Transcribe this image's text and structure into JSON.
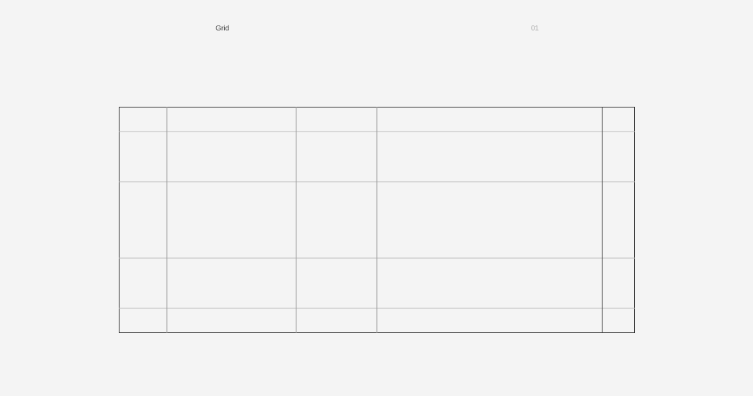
{
  "header": {
    "title": "Grid",
    "page_number": "01"
  },
  "grid": {
    "columns": 5,
    "rows": 5,
    "colors": {
      "frame": "#2c2c2c",
      "row_line": "#bdbdbd",
      "column_line": "#9e9e9e",
      "last_column_line": "#3a3a3a",
      "background": "#f4f4f4"
    }
  }
}
